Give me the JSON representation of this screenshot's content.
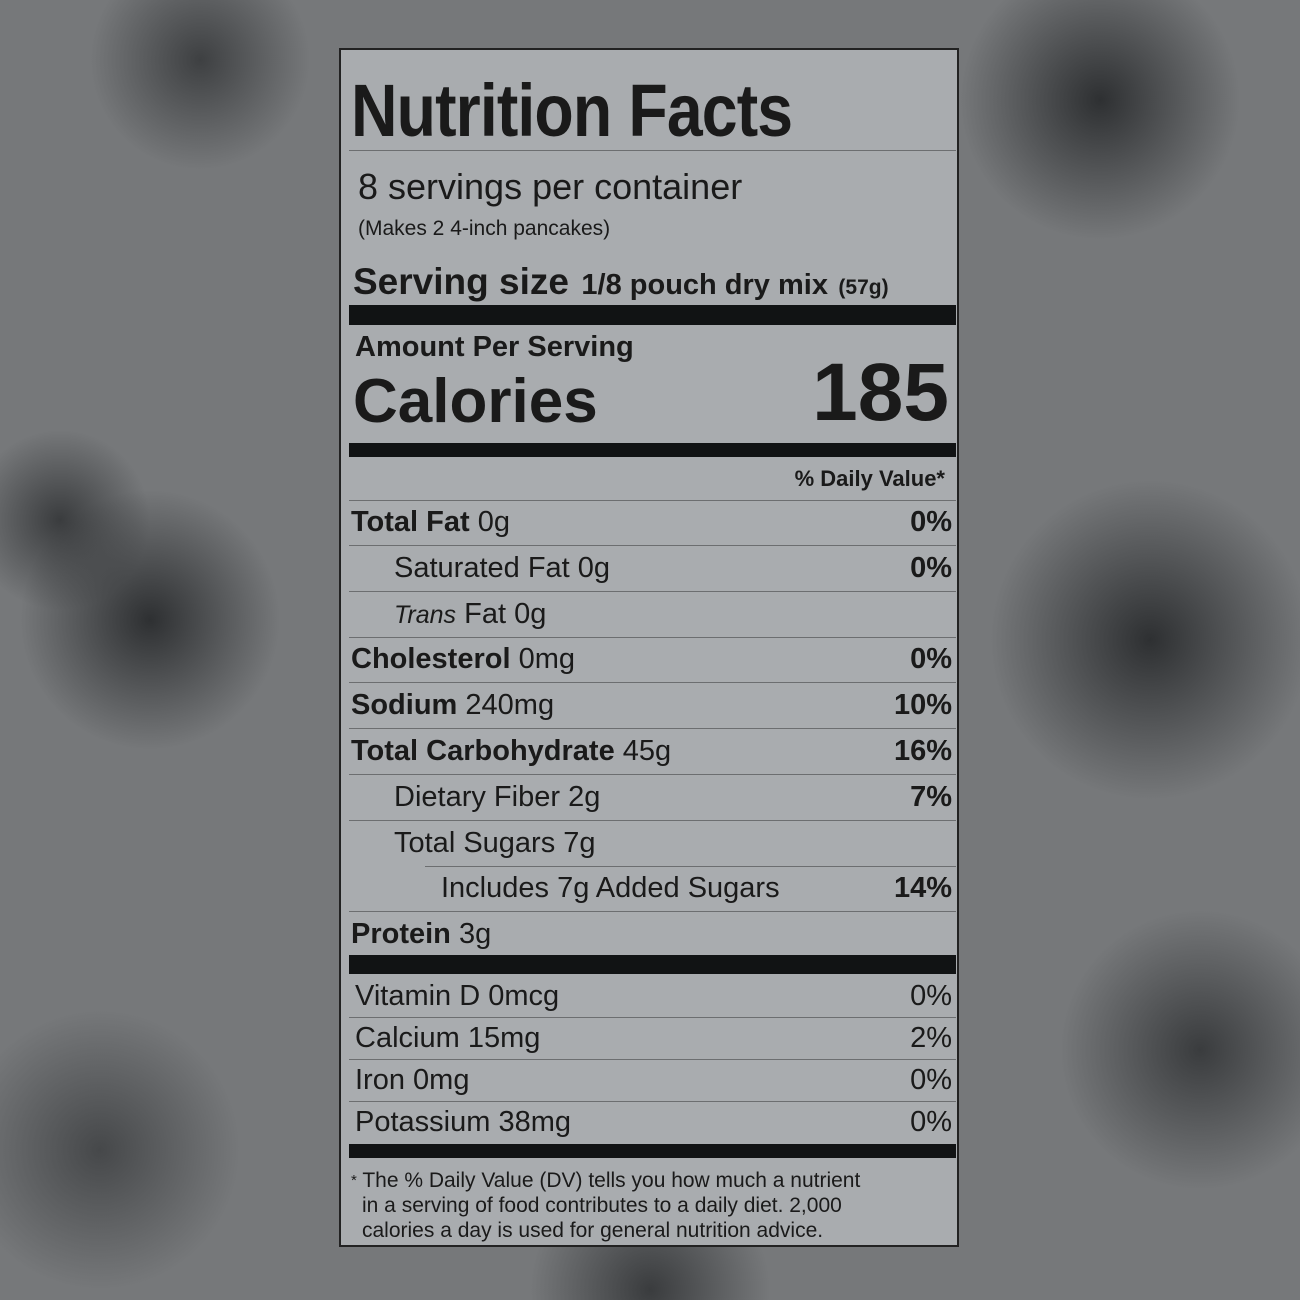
{
  "title": "Nutrition Facts",
  "servings_per_container": "8 servings per container",
  "servings_note": "(Makes 2 4-inch pancakes)",
  "serving_size": {
    "label": "Serving size",
    "value": "1/8 pouch dry mix",
    "grams": "(57g)"
  },
  "amount_per_serving": "Amount Per Serving",
  "calories": {
    "label": "Calories",
    "value": "185"
  },
  "daily_value_header": "% Daily Value*",
  "nutrients": [
    {
      "name": "Total Fat",
      "amount": "0g",
      "dv": "0%",
      "bold": true,
      "indent": 0
    },
    {
      "name": "Saturated Fat",
      "amount": "0g",
      "dv": "0%",
      "bold": false,
      "indent": 1
    },
    {
      "name": "Trans",
      "name_suffix": "Fat",
      "amount": "0g",
      "dv": "",
      "bold": false,
      "indent": 1,
      "italic": true
    },
    {
      "name": "Cholesterol",
      "amount": "0mg",
      "dv": "0%",
      "bold": true,
      "indent": 0
    },
    {
      "name": "Sodium",
      "amount": "240mg",
      "dv": "10%",
      "bold": true,
      "indent": 0
    },
    {
      "name": "Total Carbohydrate",
      "amount": "45g",
      "dv": "16%",
      "bold": true,
      "indent": 0
    },
    {
      "name": "Dietary Fiber",
      "amount": "2g",
      "dv": "7%",
      "bold": false,
      "indent": 1
    },
    {
      "name": "Total Sugars",
      "amount": "7g",
      "dv": "",
      "bold": false,
      "indent": 1
    },
    {
      "name": "Includes 7g Added Sugars",
      "amount": "",
      "dv": "14%",
      "bold": false,
      "indent": 2
    },
    {
      "name": "Protein",
      "amount": "3g",
      "dv": "",
      "bold": true,
      "indent": 0
    }
  ],
  "vitamins": [
    {
      "name": "Vitamin D",
      "amount": "0mcg",
      "dv": "0%"
    },
    {
      "name": "Calcium",
      "amount": "15mg",
      "dv": "2%"
    },
    {
      "name": "Iron",
      "amount": "0mg",
      "dv": "0%"
    },
    {
      "name": "Potassium",
      "amount": "38mg",
      "dv": "0%"
    }
  ],
  "footnote": {
    "asterisk": "*",
    "lines": [
      "The % Daily Value (DV) tells you how much a nutrient",
      "in a serving of food contributes to a daily diet. 2,000",
      "calories a day is used for general nutrition advice."
    ]
  },
  "colors": {
    "panel": "#a9acaf",
    "ink": "#111314",
    "background": "#76787a"
  }
}
